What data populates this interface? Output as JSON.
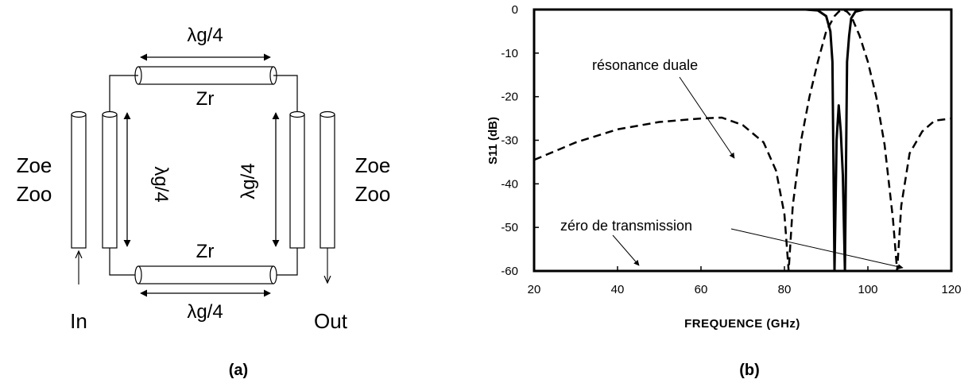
{
  "panel_a": {
    "lambda_label": "λg/4",
    "zr_label": "Zr",
    "zoe_label": "Zoe",
    "zoo_label": "Zoo",
    "in_label": "In",
    "out_label": "Out",
    "caption": "(a)"
  },
  "panel_b": {
    "caption": "(b)",
    "annotations": {
      "dual_resonance": "résonance duale",
      "transmission_zero": "zéro de transmission"
    }
  },
  "chart_data": {
    "type": "line",
    "xlabel": "FREQUENCE (GHz)",
    "ylabel": "S11 (dB)",
    "xlim": [
      20,
      120
    ],
    "ylim": [
      -60,
      0
    ],
    "x_ticks": [
      20,
      40,
      60,
      80,
      100,
      120
    ],
    "y_ticks": [
      0,
      -10,
      -20,
      -30,
      -40,
      -50,
      -60
    ],
    "grid": false,
    "legend": "none",
    "series": [
      {
        "style": "solid",
        "x": [
          20,
          85,
          88,
          90,
          91,
          91.5,
          92,
          92.5,
          93,
          93.5,
          94,
          94.5,
          95,
          95.5,
          96,
          97,
          99,
          120
        ],
        "values": [
          0,
          0,
          -0.2,
          -1.5,
          -5,
          -12,
          -60,
          -30,
          -22,
          -28,
          -38,
          -60,
          -12,
          -6,
          -2,
          -0.5,
          0,
          0
        ]
      },
      {
        "style": "dashed",
        "x": [
          20,
          25,
          30,
          40,
          50,
          60,
          65,
          70,
          75,
          78,
          80,
          81,
          82,
          84,
          86,
          88,
          90,
          92,
          93,
          94,
          95,
          96,
          98,
          100,
          102,
          104,
          106,
          107,
          108,
          110,
          113,
          116,
          120
        ],
        "values": [
          -34.5,
          -32.5,
          -30.5,
          -27.5,
          -25.8,
          -25,
          -24.8,
          -26.5,
          -30.5,
          -37,
          -47,
          -60,
          -45,
          -30,
          -20,
          -12,
          -5,
          -1.5,
          -0.5,
          0,
          -0.5,
          -1.5,
          -6,
          -12,
          -20,
          -31,
          -48,
          -60,
          -45,
          -33,
          -28,
          -25.5,
          -25
        ]
      }
    ]
  }
}
